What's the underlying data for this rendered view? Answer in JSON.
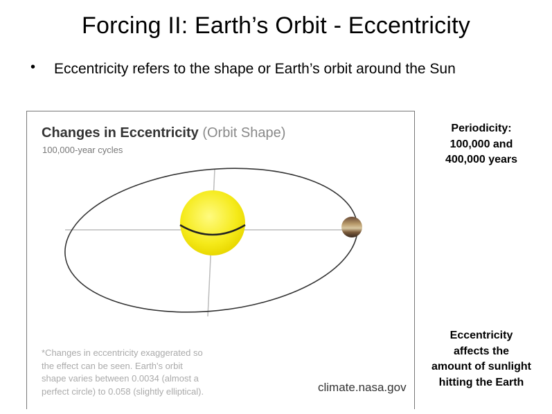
{
  "slide": {
    "title": "Forcing II: Earth’s Orbit - Eccentricity",
    "bullet": "Eccentricity refers to the shape or Earth’s orbit around the Sun"
  },
  "figure": {
    "title_bold": "Changes in Eccentricity",
    "title_paren": "(Orbit Shape)",
    "subtitle": "100,000-year cycles",
    "footnote_lines": [
      "*Changes in eccentricity exaggerated so",
      "the effect can be seen. Earth's orbit",
      "shape varies between 0.0034 (almost a",
      "perfect circle) to 0.058 (slightly elliptical)."
    ],
    "credit": "climate.nasa.gov",
    "colors": {
      "sun": "#f5ea1a",
      "orbit": "#333333",
      "axes": "#bbbbbb"
    }
  },
  "side": {
    "periodicity_lines": [
      "Periodicity:",
      "100,000 and",
      "400,000 years"
    ],
    "effect_lines": [
      "Eccentricity",
      "affects the",
      "amount of sunlight",
      "hitting the Earth"
    ]
  }
}
